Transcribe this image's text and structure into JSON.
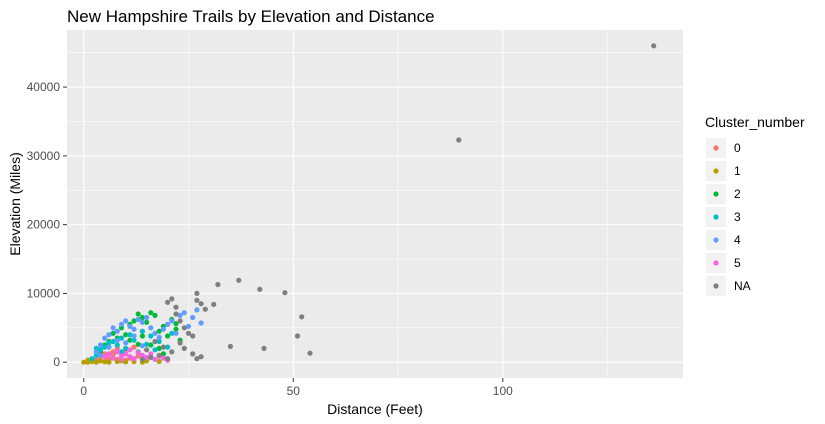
{
  "chart_data": {
    "type": "scatter",
    "title": "New Hampshire Trails by Elevation and Distance",
    "xlabel": "Distance (Feet)",
    "ylabel": "Elevation (Miles)",
    "xlim": [
      -4,
      143
    ],
    "ylim": [
      -2300,
      48300
    ],
    "x_ticks": [
      0,
      50,
      100
    ],
    "y_ticks": [
      0,
      10000,
      20000,
      30000,
      40000
    ],
    "grid": true,
    "background": "#ebebeb",
    "legend": {
      "title": "Cluster_number",
      "placement": "right",
      "entries": [
        {
          "label": "0",
          "color": "#F8766D"
        },
        {
          "label": "1",
          "color": "#B79F00"
        },
        {
          "label": "2",
          "color": "#00BA38"
        },
        {
          "label": "3",
          "color": "#00BFC4"
        },
        {
          "label": "4",
          "color": "#619CFF"
        },
        {
          "label": "5",
          "color": "#F564E3"
        },
        {
          "label": "NA",
          "color": "#7F7F7F"
        }
      ]
    },
    "series": [
      {
        "name": "0",
        "points": [
          [
            3,
            300
          ],
          [
            4,
            800
          ],
          [
            5,
            1200
          ],
          [
            6,
            500
          ],
          [
            7,
            1500
          ],
          [
            8,
            2000
          ],
          [
            6,
            200
          ],
          [
            9,
            1000
          ],
          [
            10,
            1800
          ],
          [
            11,
            600
          ],
          [
            12,
            2200
          ],
          [
            5,
            100
          ],
          [
            8,
            400
          ],
          [
            10,
            300
          ],
          [
            13,
            900
          ],
          [
            7,
            1100
          ]
        ]
      },
      {
        "name": "1",
        "points": [
          [
            0,
            0
          ],
          [
            1,
            0
          ],
          [
            1,
            300
          ],
          [
            2,
            100
          ],
          [
            3,
            0
          ],
          [
            4,
            200
          ],
          [
            5,
            50
          ],
          [
            6,
            0
          ],
          [
            8,
            100
          ],
          [
            10,
            50
          ],
          [
            12,
            100
          ],
          [
            14,
            0
          ],
          [
            15,
            200
          ],
          [
            18,
            100
          ],
          [
            20,
            300
          ],
          [
            2,
            400
          ],
          [
            9,
            200
          ]
        ]
      },
      {
        "name": "2",
        "points": [
          [
            4,
            1500
          ],
          [
            5,
            2500
          ],
          [
            6,
            3000
          ],
          [
            7,
            4200
          ],
          [
            8,
            3500
          ],
          [
            9,
            5000
          ],
          [
            10,
            4000
          ],
          [
            11,
            5500
          ],
          [
            12,
            6000
          ],
          [
            13,
            7000
          ],
          [
            14,
            6500
          ],
          [
            15,
            5800
          ],
          [
            16,
            7200
          ],
          [
            17,
            6800
          ],
          [
            18,
            4500
          ],
          [
            19,
            5200
          ],
          [
            20,
            3800
          ],
          [
            21,
            6200
          ],
          [
            22,
            4800
          ],
          [
            23,
            3200
          ],
          [
            16,
            2500
          ],
          [
            14,
            3800
          ],
          [
            13,
            2600
          ],
          [
            18,
            2000
          ],
          [
            22,
            5600
          ],
          [
            11,
            3200
          ],
          [
            19,
            1200
          ]
        ]
      },
      {
        "name": "3",
        "points": [
          [
            2,
            500
          ],
          [
            3,
            1000
          ],
          [
            4,
            1800
          ],
          [
            5,
            2200
          ],
          [
            6,
            2800
          ],
          [
            7,
            3000
          ],
          [
            8,
            2500
          ],
          [
            9,
            3500
          ],
          [
            10,
            2000
          ],
          [
            11,
            4000
          ],
          [
            12,
            3200
          ],
          [
            13,
            1500
          ],
          [
            14,
            4500
          ],
          [
            15,
            2600
          ],
          [
            16,
            3800
          ],
          [
            17,
            1800
          ],
          [
            18,
            3000
          ],
          [
            20,
            2200
          ],
          [
            21,
            4200
          ],
          [
            3,
            2000
          ],
          [
            9,
            1500
          ]
        ]
      },
      {
        "name": "4",
        "points": [
          [
            3,
            1500
          ],
          [
            4,
            2500
          ],
          [
            5,
            3500
          ],
          [
            6,
            4000
          ],
          [
            7,
            5000
          ],
          [
            8,
            4500
          ],
          [
            9,
            5500
          ],
          [
            10,
            6000
          ],
          [
            11,
            5200
          ],
          [
            12,
            4800
          ],
          [
            13,
            6200
          ],
          [
            14,
            5800
          ],
          [
            15,
            6500
          ],
          [
            16,
            5000
          ],
          [
            17,
            4200
          ],
          [
            18,
            3600
          ],
          [
            19,
            4800
          ],
          [
            20,
            5500
          ],
          [
            21,
            6000
          ],
          [
            22,
            4200
          ],
          [
            24,
            7200
          ],
          [
            25,
            5200
          ],
          [
            26,
            6500
          ],
          [
            27,
            7600
          ],
          [
            28,
            5700
          ],
          [
            23,
            6800
          ],
          [
            6,
            2200
          ],
          [
            8,
            3200
          ],
          [
            10,
            2800
          ],
          [
            12,
            3800
          ],
          [
            14,
            2400
          ],
          [
            4,
            1000
          ]
        ]
      },
      {
        "name": "5",
        "points": [
          [
            5,
            800
          ],
          [
            6,
            1200
          ],
          [
            7,
            600
          ],
          [
            8,
            1500
          ],
          [
            9,
            900
          ],
          [
            10,
            1200
          ],
          [
            11,
            800
          ],
          [
            12,
            500
          ],
          [
            13,
            1400
          ],
          [
            14,
            1000
          ],
          [
            15,
            700
          ],
          [
            16,
            1200
          ],
          [
            17,
            400
          ],
          [
            18,
            900
          ],
          [
            19,
            600
          ],
          [
            20,
            300
          ],
          [
            9,
            400
          ],
          [
            11,
            1800
          ]
        ]
      },
      {
        "name": "NA",
        "points": [
          [
            20,
            8700
          ],
          [
            21,
            9200
          ],
          [
            22,
            8000
          ],
          [
            22,
            7000
          ],
          [
            23,
            6000
          ],
          [
            24,
            5000
          ],
          [
            25,
            4200
          ],
          [
            26,
            3800
          ],
          [
            27,
            10000
          ],
          [
            27,
            9000
          ],
          [
            28,
            8500
          ],
          [
            29,
            7700
          ],
          [
            31,
            8400
          ],
          [
            32,
            11300
          ],
          [
            37,
            11900
          ],
          [
            42,
            10600
          ],
          [
            48,
            10100
          ],
          [
            52,
            6600
          ],
          [
            51,
            3800
          ],
          [
            54,
            1300
          ],
          [
            35,
            2300
          ],
          [
            43,
            2000
          ],
          [
            28,
            800
          ],
          [
            27,
            500
          ],
          [
            26,
            1200
          ],
          [
            24,
            2000
          ],
          [
            23,
            2800
          ],
          [
            21,
            1500
          ],
          [
            20,
            500
          ],
          [
            19,
            2200
          ],
          [
            18,
            1000
          ],
          [
            17,
            3000
          ],
          [
            16,
            700
          ],
          [
            15,
            1800
          ],
          [
            14,
            400
          ],
          [
            89.5,
            32300
          ],
          [
            136,
            46000
          ]
        ]
      }
    ]
  }
}
